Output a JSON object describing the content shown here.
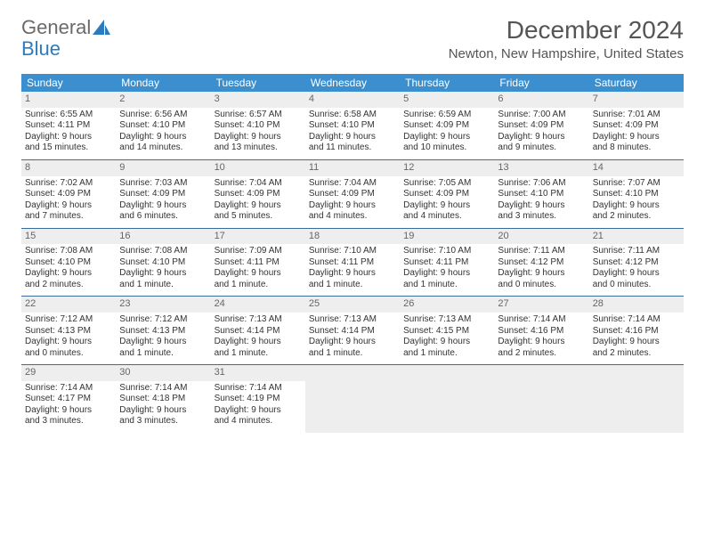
{
  "logo": {
    "text_a": "General",
    "text_b": "Blue"
  },
  "title": "December 2024",
  "location": "Newton, New Hampshire, United States",
  "colors": {
    "header_bg": "#3c8fcf",
    "header_text": "#ffffff",
    "daynum_bg": "#eeeeee",
    "rule": "#3c6a9a",
    "body_text": "#333333",
    "title_text": "#555555"
  },
  "days_of_week": [
    "Sunday",
    "Monday",
    "Tuesday",
    "Wednesday",
    "Thursday",
    "Friday",
    "Saturday"
  ],
  "weeks": [
    [
      {
        "n": "1",
        "sr": "Sunrise: 6:55 AM",
        "ss": "Sunset: 4:11 PM",
        "d1": "Daylight: 9 hours",
        "d2": "and 15 minutes."
      },
      {
        "n": "2",
        "sr": "Sunrise: 6:56 AM",
        "ss": "Sunset: 4:10 PM",
        "d1": "Daylight: 9 hours",
        "d2": "and 14 minutes."
      },
      {
        "n": "3",
        "sr": "Sunrise: 6:57 AM",
        "ss": "Sunset: 4:10 PM",
        "d1": "Daylight: 9 hours",
        "d2": "and 13 minutes."
      },
      {
        "n": "4",
        "sr": "Sunrise: 6:58 AM",
        "ss": "Sunset: 4:10 PM",
        "d1": "Daylight: 9 hours",
        "d2": "and 11 minutes."
      },
      {
        "n": "5",
        "sr": "Sunrise: 6:59 AM",
        "ss": "Sunset: 4:09 PM",
        "d1": "Daylight: 9 hours",
        "d2": "and 10 minutes."
      },
      {
        "n": "6",
        "sr": "Sunrise: 7:00 AM",
        "ss": "Sunset: 4:09 PM",
        "d1": "Daylight: 9 hours",
        "d2": "and 9 minutes."
      },
      {
        "n": "7",
        "sr": "Sunrise: 7:01 AM",
        "ss": "Sunset: 4:09 PM",
        "d1": "Daylight: 9 hours",
        "d2": "and 8 minutes."
      }
    ],
    [
      {
        "n": "8",
        "sr": "Sunrise: 7:02 AM",
        "ss": "Sunset: 4:09 PM",
        "d1": "Daylight: 9 hours",
        "d2": "and 7 minutes."
      },
      {
        "n": "9",
        "sr": "Sunrise: 7:03 AM",
        "ss": "Sunset: 4:09 PM",
        "d1": "Daylight: 9 hours",
        "d2": "and 6 minutes."
      },
      {
        "n": "10",
        "sr": "Sunrise: 7:04 AM",
        "ss": "Sunset: 4:09 PM",
        "d1": "Daylight: 9 hours",
        "d2": "and 5 minutes."
      },
      {
        "n": "11",
        "sr": "Sunrise: 7:04 AM",
        "ss": "Sunset: 4:09 PM",
        "d1": "Daylight: 9 hours",
        "d2": "and 4 minutes."
      },
      {
        "n": "12",
        "sr": "Sunrise: 7:05 AM",
        "ss": "Sunset: 4:09 PM",
        "d1": "Daylight: 9 hours",
        "d2": "and 4 minutes."
      },
      {
        "n": "13",
        "sr": "Sunrise: 7:06 AM",
        "ss": "Sunset: 4:10 PM",
        "d1": "Daylight: 9 hours",
        "d2": "and 3 minutes."
      },
      {
        "n": "14",
        "sr": "Sunrise: 7:07 AM",
        "ss": "Sunset: 4:10 PM",
        "d1": "Daylight: 9 hours",
        "d2": "and 2 minutes."
      }
    ],
    [
      {
        "n": "15",
        "sr": "Sunrise: 7:08 AM",
        "ss": "Sunset: 4:10 PM",
        "d1": "Daylight: 9 hours",
        "d2": "and 2 minutes."
      },
      {
        "n": "16",
        "sr": "Sunrise: 7:08 AM",
        "ss": "Sunset: 4:10 PM",
        "d1": "Daylight: 9 hours",
        "d2": "and 1 minute."
      },
      {
        "n": "17",
        "sr": "Sunrise: 7:09 AM",
        "ss": "Sunset: 4:11 PM",
        "d1": "Daylight: 9 hours",
        "d2": "and 1 minute."
      },
      {
        "n": "18",
        "sr": "Sunrise: 7:10 AM",
        "ss": "Sunset: 4:11 PM",
        "d1": "Daylight: 9 hours",
        "d2": "and 1 minute."
      },
      {
        "n": "19",
        "sr": "Sunrise: 7:10 AM",
        "ss": "Sunset: 4:11 PM",
        "d1": "Daylight: 9 hours",
        "d2": "and 1 minute."
      },
      {
        "n": "20",
        "sr": "Sunrise: 7:11 AM",
        "ss": "Sunset: 4:12 PM",
        "d1": "Daylight: 9 hours",
        "d2": "and 0 minutes."
      },
      {
        "n": "21",
        "sr": "Sunrise: 7:11 AM",
        "ss": "Sunset: 4:12 PM",
        "d1": "Daylight: 9 hours",
        "d2": "and 0 minutes."
      }
    ],
    [
      {
        "n": "22",
        "sr": "Sunrise: 7:12 AM",
        "ss": "Sunset: 4:13 PM",
        "d1": "Daylight: 9 hours",
        "d2": "and 0 minutes."
      },
      {
        "n": "23",
        "sr": "Sunrise: 7:12 AM",
        "ss": "Sunset: 4:13 PM",
        "d1": "Daylight: 9 hours",
        "d2": "and 1 minute."
      },
      {
        "n": "24",
        "sr": "Sunrise: 7:13 AM",
        "ss": "Sunset: 4:14 PM",
        "d1": "Daylight: 9 hours",
        "d2": "and 1 minute."
      },
      {
        "n": "25",
        "sr": "Sunrise: 7:13 AM",
        "ss": "Sunset: 4:14 PM",
        "d1": "Daylight: 9 hours",
        "d2": "and 1 minute."
      },
      {
        "n": "26",
        "sr": "Sunrise: 7:13 AM",
        "ss": "Sunset: 4:15 PM",
        "d1": "Daylight: 9 hours",
        "d2": "and 1 minute."
      },
      {
        "n": "27",
        "sr": "Sunrise: 7:14 AM",
        "ss": "Sunset: 4:16 PM",
        "d1": "Daylight: 9 hours",
        "d2": "and 2 minutes."
      },
      {
        "n": "28",
        "sr": "Sunrise: 7:14 AM",
        "ss": "Sunset: 4:16 PM",
        "d1": "Daylight: 9 hours",
        "d2": "and 2 minutes."
      }
    ],
    [
      {
        "n": "29",
        "sr": "Sunrise: 7:14 AM",
        "ss": "Sunset: 4:17 PM",
        "d1": "Daylight: 9 hours",
        "d2": "and 3 minutes."
      },
      {
        "n": "30",
        "sr": "Sunrise: 7:14 AM",
        "ss": "Sunset: 4:18 PM",
        "d1": "Daylight: 9 hours",
        "d2": "and 3 minutes."
      },
      {
        "n": "31",
        "sr": "Sunrise: 7:14 AM",
        "ss": "Sunset: 4:19 PM",
        "d1": "Daylight: 9 hours",
        "d2": "and 4 minutes."
      },
      {
        "pad": true
      },
      {
        "pad": true
      },
      {
        "pad": true
      },
      {
        "pad": true
      }
    ]
  ]
}
